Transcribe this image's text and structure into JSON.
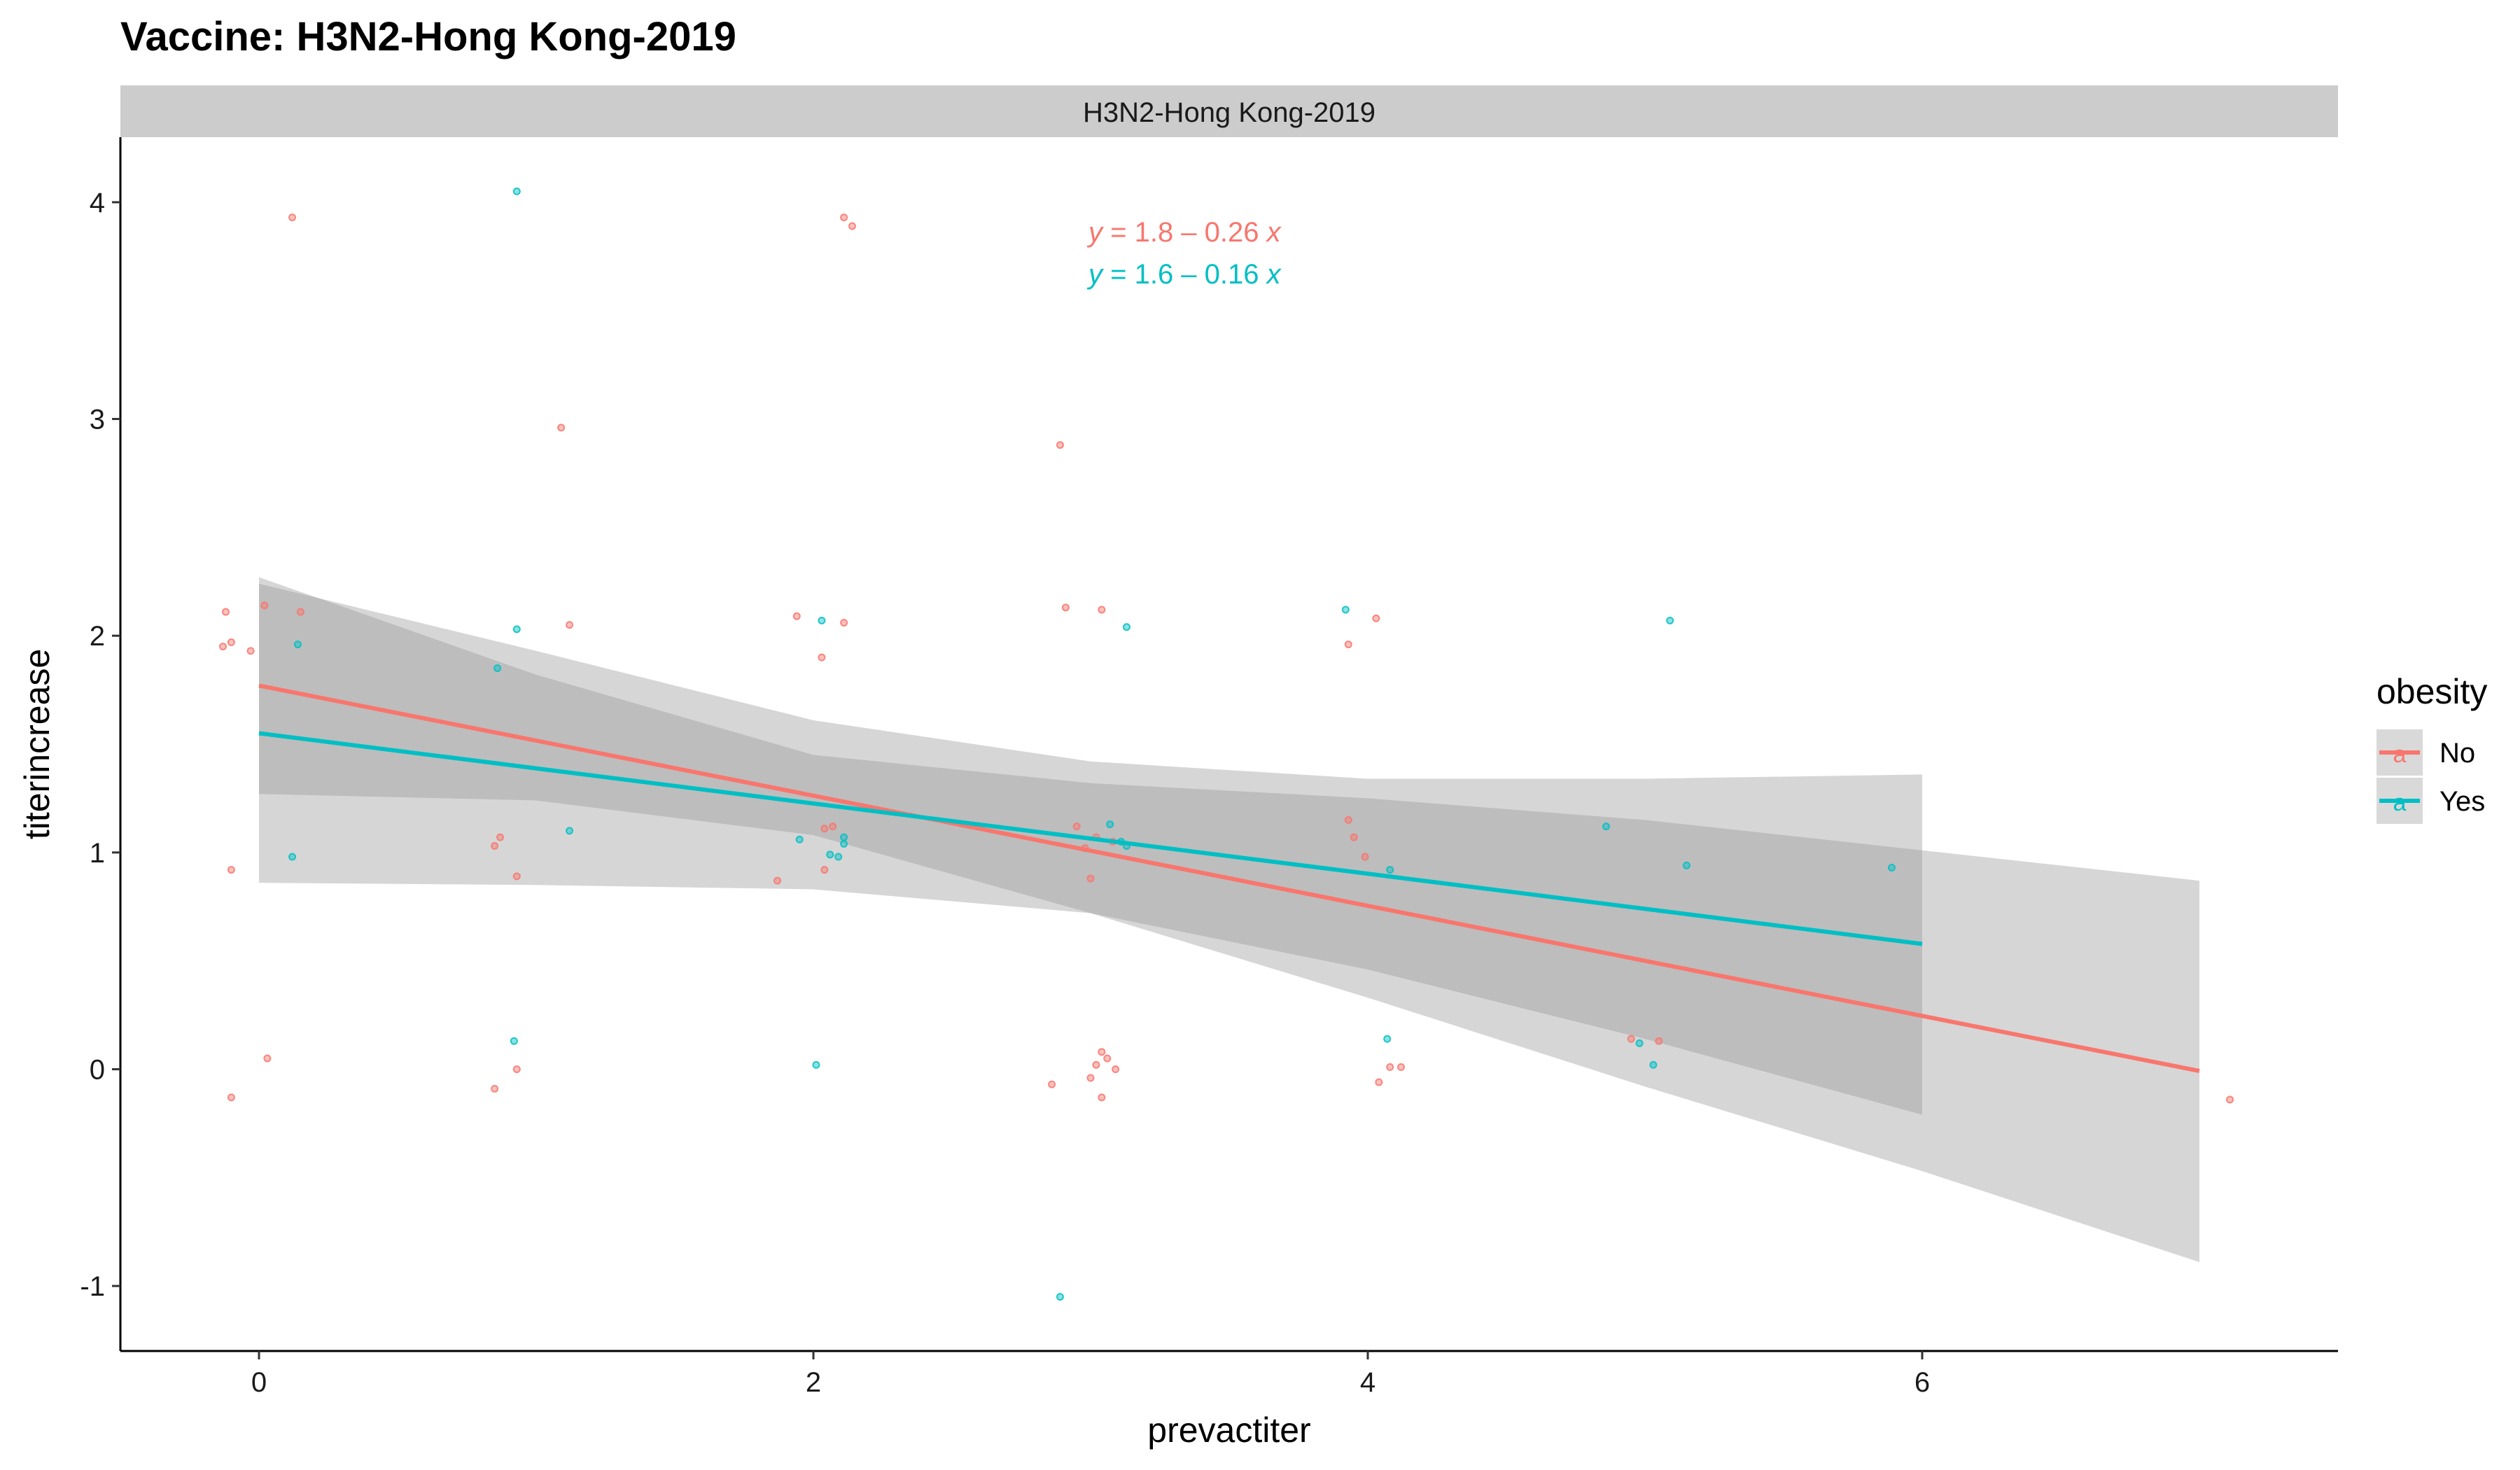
{
  "chart_data": {
    "type": "scatter",
    "title": "Vaccine: H3N2-Hong Kong-2019",
    "facet_label": "H3N2-Hong Kong-2019",
    "xlabel": "prevactiter",
    "ylabel": "titerincrease",
    "xlim": [
      -0.5,
      7.5
    ],
    "ylim": [
      -1.3,
      4.3
    ],
    "x_ticks": [
      0,
      2,
      4,
      6
    ],
    "y_ticks": [
      -1,
      0,
      1,
      2,
      3,
      4
    ],
    "x_tick_labels": [
      "0",
      "2",
      "4",
      "6"
    ],
    "y_tick_labels": [
      "-1",
      "0",
      "1",
      "2",
      "3",
      "4"
    ],
    "grid": false,
    "legend": {
      "title": "obesity",
      "position": "right",
      "glyph": "a"
    },
    "series": [
      {
        "name": "No",
        "color": "#F8766D",
        "equation_prefix": "y",
        "equation_rest": " = 1.8 – 0.26 ",
        "equation_var": "x",
        "fit": {
          "intercept": 1.77,
          "slope": -0.254,
          "x_range": [
            0,
            7
          ]
        },
        "band": [
          {
            "x": 0,
            "lo": 1.27,
            "hi": 2.27
          },
          {
            "x": 1,
            "lo": 1.24,
            "hi": 1.82
          },
          {
            "x": 2,
            "lo": 1.08,
            "hi": 1.45
          },
          {
            "x": 3,
            "lo": 0.72,
            "hi": 1.32
          },
          {
            "x": 4,
            "lo": 0.33,
            "hi": 1.25
          },
          {
            "x": 5,
            "lo": -0.08,
            "hi": 1.15
          },
          {
            "x": 6,
            "lo": -0.47,
            "hi": 1.01
          },
          {
            "x": 7,
            "lo": -0.89,
            "hi": 0.87
          }
        ],
        "points": [
          {
            "x": -0.12,
            "y": 2.11
          },
          {
            "x": -0.13,
            "y": 1.95
          },
          {
            "x": -0.1,
            "y": 1.97
          },
          {
            "x": -0.03,
            "y": 1.93
          },
          {
            "x": 0.02,
            "y": 2.14
          },
          {
            "x": 0.15,
            "y": 2.11
          },
          {
            "x": 0.12,
            "y": 3.93
          },
          {
            "x": -0.1,
            "y": 0.92
          },
          {
            "x": 0.03,
            "y": 0.05
          },
          {
            "x": -0.1,
            "y": -0.13
          },
          {
            "x": 1.09,
            "y": 2.96
          },
          {
            "x": 1.12,
            "y": 2.05
          },
          {
            "x": 0.87,
            "y": 1.07
          },
          {
            "x": 0.85,
            "y": 1.03
          },
          {
            "x": 0.93,
            "y": 0.89
          },
          {
            "x": 0.85,
            "y": -0.09
          },
          {
            "x": 0.93,
            "y": 0.0
          },
          {
            "x": 1.94,
            "y": 2.09
          },
          {
            "x": 2.11,
            "y": 2.06
          },
          {
            "x": 2.03,
            "y": 1.9
          },
          {
            "x": 2.11,
            "y": 3.93
          },
          {
            "x": 2.14,
            "y": 3.89
          },
          {
            "x": 2.04,
            "y": 1.11
          },
          {
            "x": 2.07,
            "y": 1.12
          },
          {
            "x": 1.87,
            "y": 0.87
          },
          {
            "x": 2.04,
            "y": 0.92
          },
          {
            "x": 2.89,
            "y": 2.88
          },
          {
            "x": 2.91,
            "y": 2.13
          },
          {
            "x": 3.04,
            "y": 2.12
          },
          {
            "x": 2.95,
            "y": 1.12
          },
          {
            "x": 2.98,
            "y": 1.02
          },
          {
            "x": 3.02,
            "y": 1.07
          },
          {
            "x": 3.08,
            "y": 1.05
          },
          {
            "x": 3.0,
            "y": 0.88
          },
          {
            "x": 2.86,
            "y": -0.07
          },
          {
            "x": 3.0,
            "y": -0.04
          },
          {
            "x": 3.02,
            "y": 0.02
          },
          {
            "x": 3.04,
            "y": 0.08
          },
          {
            "x": 3.06,
            "y": 0.05
          },
          {
            "x": 3.09,
            "y": 0.0
          },
          {
            "x": 3.04,
            "y": -0.13
          },
          {
            "x": 3.93,
            "y": 1.96
          },
          {
            "x": 4.03,
            "y": 2.08
          },
          {
            "x": 3.93,
            "y": 1.15
          },
          {
            "x": 3.95,
            "y": 1.07
          },
          {
            "x": 3.99,
            "y": 0.98
          },
          {
            "x": 4.04,
            "y": -0.06
          },
          {
            "x": 4.08,
            "y": 0.01
          },
          {
            "x": 4.12,
            "y": 0.01
          },
          {
            "x": 4.95,
            "y": 0.14
          },
          {
            "x": 5.05,
            "y": 0.13
          },
          {
            "x": 7.11,
            "y": -0.14
          }
        ]
      },
      {
        "name": "Yes",
        "color": "#00BFC4",
        "equation_prefix": "y",
        "equation_rest": " = 1.6 – 0.16 ",
        "equation_var": "x",
        "fit": {
          "intercept": 1.55,
          "slope": -0.162,
          "x_range": [
            0,
            6
          ]
        },
        "band": [
          {
            "x": 0,
            "lo": 0.86,
            "hi": 2.24
          },
          {
            "x": 1,
            "lo": 0.85,
            "hi": 1.93
          },
          {
            "x": 2,
            "lo": 0.83,
            "hi": 1.61
          },
          {
            "x": 3,
            "lo": 0.72,
            "hi": 1.42
          },
          {
            "x": 4,
            "lo": 0.46,
            "hi": 1.34
          },
          {
            "x": 5,
            "lo": 0.14,
            "hi": 1.34
          },
          {
            "x": 6,
            "lo": -0.21,
            "hi": 1.36
          }
        ],
        "points": [
          {
            "x": 0.14,
            "y": 1.96
          },
          {
            "x": 0.12,
            "y": 0.98
          },
          {
            "x": 0.93,
            "y": 4.05
          },
          {
            "x": 0.93,
            "y": 2.03
          },
          {
            "x": 0.86,
            "y": 1.85
          },
          {
            "x": 1.12,
            "y": 1.1
          },
          {
            "x": 0.92,
            "y": 0.13
          },
          {
            "x": 2.03,
            "y": 2.07
          },
          {
            "x": 1.95,
            "y": 1.06
          },
          {
            "x": 2.06,
            "y": 0.99
          },
          {
            "x": 2.09,
            "y": 0.98
          },
          {
            "x": 2.11,
            "y": 1.04
          },
          {
            "x": 2.11,
            "y": 1.07
          },
          {
            "x": 2.01,
            "y": 0.02
          },
          {
            "x": 3.07,
            "y": 1.13
          },
          {
            "x": 3.11,
            "y": 1.05
          },
          {
            "x": 3.13,
            "y": 2.04
          },
          {
            "x": 3.13,
            "y": 1.03
          },
          {
            "x": 2.89,
            "y": -1.05
          },
          {
            "x": 3.92,
            "y": 2.12
          },
          {
            "x": 4.08,
            "y": 0.92
          },
          {
            "x": 4.07,
            "y": 0.14
          },
          {
            "x": 4.86,
            "y": 1.12
          },
          {
            "x": 5.09,
            "y": 2.07
          },
          {
            "x": 5.15,
            "y": 0.94
          },
          {
            "x": 5.89,
            "y": 0.93
          },
          {
            "x": 4.98,
            "y": 0.12
          },
          {
            "x": 5.03,
            "y": 0.02
          }
        ]
      }
    ]
  }
}
